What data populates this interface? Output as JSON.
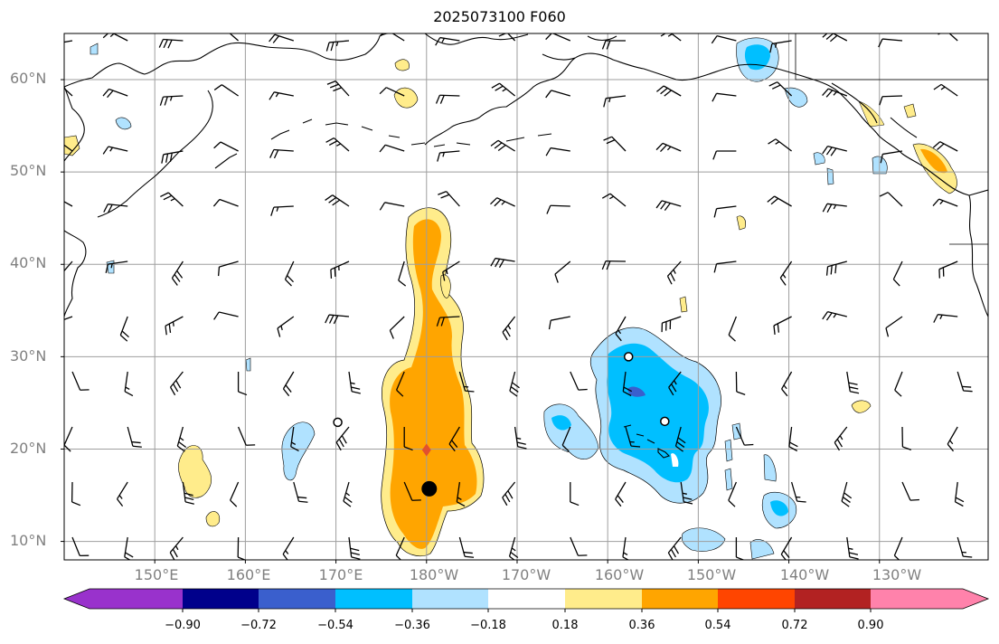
{
  "title": "2025073100 F060",
  "lat_labels": [
    "60°N",
    "50°N",
    "40°N",
    "30°N",
    "20°N",
    "10°N"
  ],
  "lon_labels": [
    "150°E",
    "160°E",
    "170°E",
    "180°W",
    "170°W",
    "160°W",
    "150°W",
    "140°W",
    "130°W"
  ],
  "colorbar": {
    "colors": [
      "#9932cc",
      "#00008b",
      "#3a5fcd",
      "#00bfff",
      "#b0e2ff",
      "#ffffff",
      "#ffec8b",
      "#ffa500",
      "#ff4500",
      "#b22222",
      "#ff82ab"
    ],
    "tick_labels": [
      "−0.90",
      "−0.72",
      "−0.54",
      "−0.36",
      "−0.18",
      "0.18",
      "0.36",
      "0.54",
      "0.72",
      "0.90"
    ]
  },
  "map": {
    "extent": {
      "lon_min": 140,
      "lon_max": 242,
      "lat_min": 8,
      "lat_max": 65
    },
    "graticule_lons": [
      150,
      160,
      170,
      180,
      190,
      200,
      210,
      220,
      230
    ],
    "graticule_lats": [
      10,
      20,
      30,
      40,
      50,
      60
    ],
    "markers": {
      "black_dot": {
        "lon": 180.3,
        "lat": 15.7
      },
      "red_diamond": {
        "lon": 180.0,
        "lat": 19.9
      },
      "open_circles": [
        {
          "lon": 170.2,
          "lat": 22.9
        },
        {
          "lon": 206.3,
          "lat": 23.0
        },
        {
          "lon": 202.3,
          "lat": 30.0
        }
      ]
    }
  }
}
